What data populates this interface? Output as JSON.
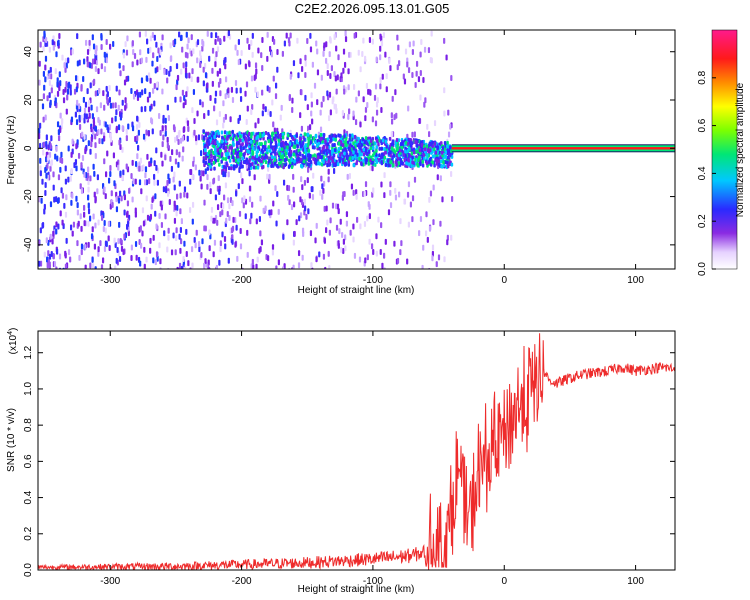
{
  "figure_title": "C2E2.2026.095.13.01.G05",
  "colors": {
    "snr_line": "#ee2b2b",
    "trace_band": "#00e676",
    "trace_core": "#ff1a1a",
    "axis": "#000000"
  },
  "chart_data": [
    {
      "type": "heatmap",
      "title": "C2E2.2026.095.13.01.G05",
      "xlabel": "Height of straight line (km)",
      "ylabel": "Frequency (Hz)",
      "xlim": [
        -355,
        130
      ],
      "ylim": [
        -50,
        49
      ],
      "xticks": [
        -300,
        -200,
        -100,
        0,
        100
      ],
      "yticks": [
        -40,
        -20,
        0,
        20,
        40
      ],
      "colorbar": {
        "label": "Normalized spectral amplitude",
        "range": [
          0,
          1
        ],
        "ticks": [
          "0.0",
          "0.2",
          "0.4",
          "0.6",
          "0.8"
        ],
        "colormap": "rainbow (white → violet → blue → cyan → green → yellow → orange → red → magenta)"
      },
      "description_of_signal": {
        "carrier_frequency_hz": 0,
        "steady_trace_from_km": -40,
        "steady_trace_to_km": 130,
        "noisy_scatter_region_km": [
          -355,
          -40
        ]
      },
      "grid": false
    },
    {
      "type": "line",
      "xlabel": "Height of straight line (km)",
      "ylabel": "SNR (10 * v/v)",
      "yscale_label": "(x10",
      "yscale_exp": "4",
      "xlim": [
        -355,
        130
      ],
      "ylim": [
        0,
        1.32
      ],
      "xticks": [
        -300,
        -200,
        -100,
        0,
        100
      ],
      "yticks": [
        "0.0",
        "0.2",
        "0.4",
        "0.6",
        "0.8",
        "1.0",
        "1.2"
      ],
      "grid": false,
      "series": [
        {
          "x": [
            -355,
            -300,
            -250,
            -200,
            -150,
            -100,
            -70,
            -50,
            -42,
            -38,
            -34,
            -30,
            -26,
            -22,
            -18,
            -14,
            -10,
            -6,
            -2,
            0,
            6,
            12,
            20,
            26,
            30,
            34,
            40,
            50,
            60,
            70,
            80,
            90,
            100,
            110,
            120,
            130
          ],
          "values": [
            0.015,
            0.018,
            0.02,
            0.03,
            0.04,
            0.06,
            0.08,
            0.12,
            0.2,
            0.45,
            0.55,
            0.35,
            0.25,
            0.45,
            0.55,
            0.6,
            0.65,
            0.7,
            0.72,
            0.78,
            0.85,
            0.9,
            0.98,
            1.05,
            1.1,
            1.05,
            1.03,
            1.06,
            1.08,
            1.09,
            1.1,
            1.12,
            1.1,
            1.11,
            1.12,
            1.11
          ]
        }
      ]
    }
  ]
}
